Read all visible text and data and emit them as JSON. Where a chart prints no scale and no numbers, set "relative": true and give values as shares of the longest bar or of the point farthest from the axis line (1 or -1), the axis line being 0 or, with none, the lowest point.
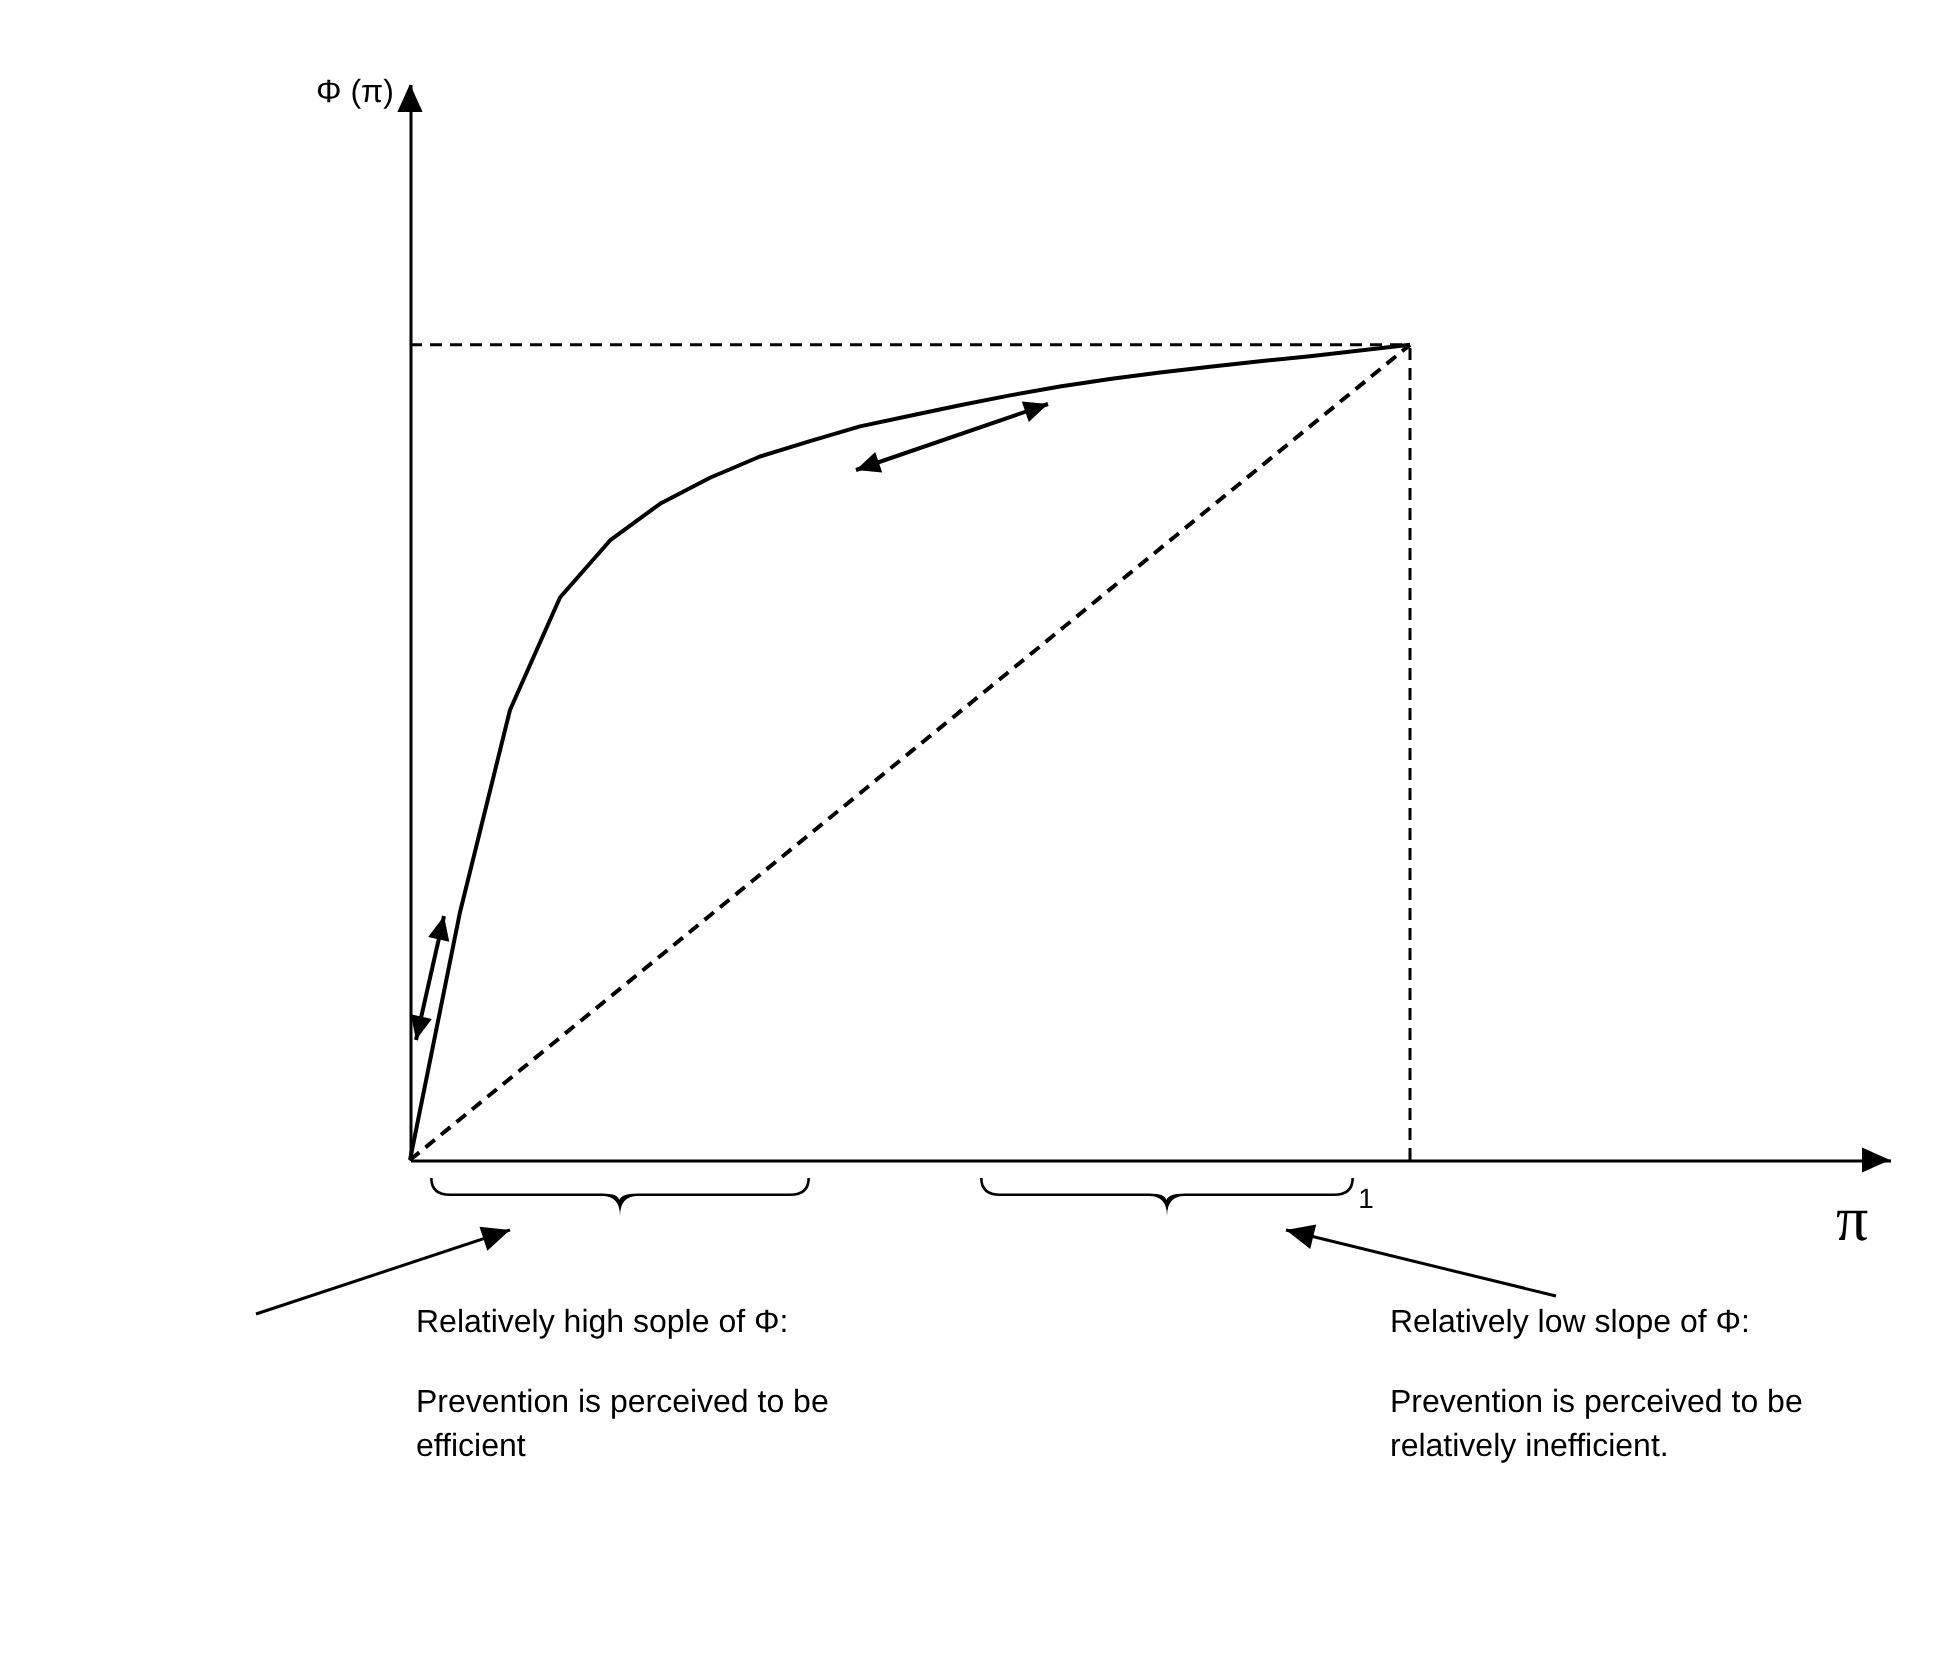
{
  "chart_data": {
    "type": "line",
    "relative": true,
    "categories": [
      null,
      null,
      null,
      null,
      null,
      null,
      null,
      null,
      null,
      null,
      null,
      null,
      null,
      null,
      null,
      null,
      null,
      null,
      null,
      null,
      null
    ],
    "series": [
      {
        "color": "#000000",
        "line_style": "solid",
        "values": [
          0,
          0.304,
          0.552,
          0.69,
          0.76,
          0.805,
          0.837,
          0.863,
          0.882,
          0.9,
          0.913,
          0.926,
          0.938,
          0.949,
          0.958,
          0.966,
          0.973,
          0.98,
          0.986,
          0.993,
          1
        ]
      },
      {
        "color": "#000000",
        "line_style": "dashed",
        "values": [
          0,
          0.05,
          0.1,
          0.15,
          0.2,
          0.25,
          0.3,
          0.35,
          0.4,
          0.45,
          0.5,
          0.55,
          0.6,
          0.65,
          0.7,
          0.75,
          0.8,
          0.85,
          0.9,
          0.95,
          1
        ]
      }
    ],
    "ref_lines": [
      {
        "axis": "x",
        "label": "1",
        "color": "#000000",
        "line_style": "dashed"
      },
      {
        "axis": "y",
        "value": 1,
        "color": "#000000",
        "line_style": "dashed"
      }
    ],
    "annotations": [
      "Φ (π)",
      "π",
      "Relatively high sople of Φ:",
      "Prevention is perceived to be efficient",
      "Relatively low slope of Φ:",
      "Prevention is perceived to be relatively inefficient."
    ]
  }
}
